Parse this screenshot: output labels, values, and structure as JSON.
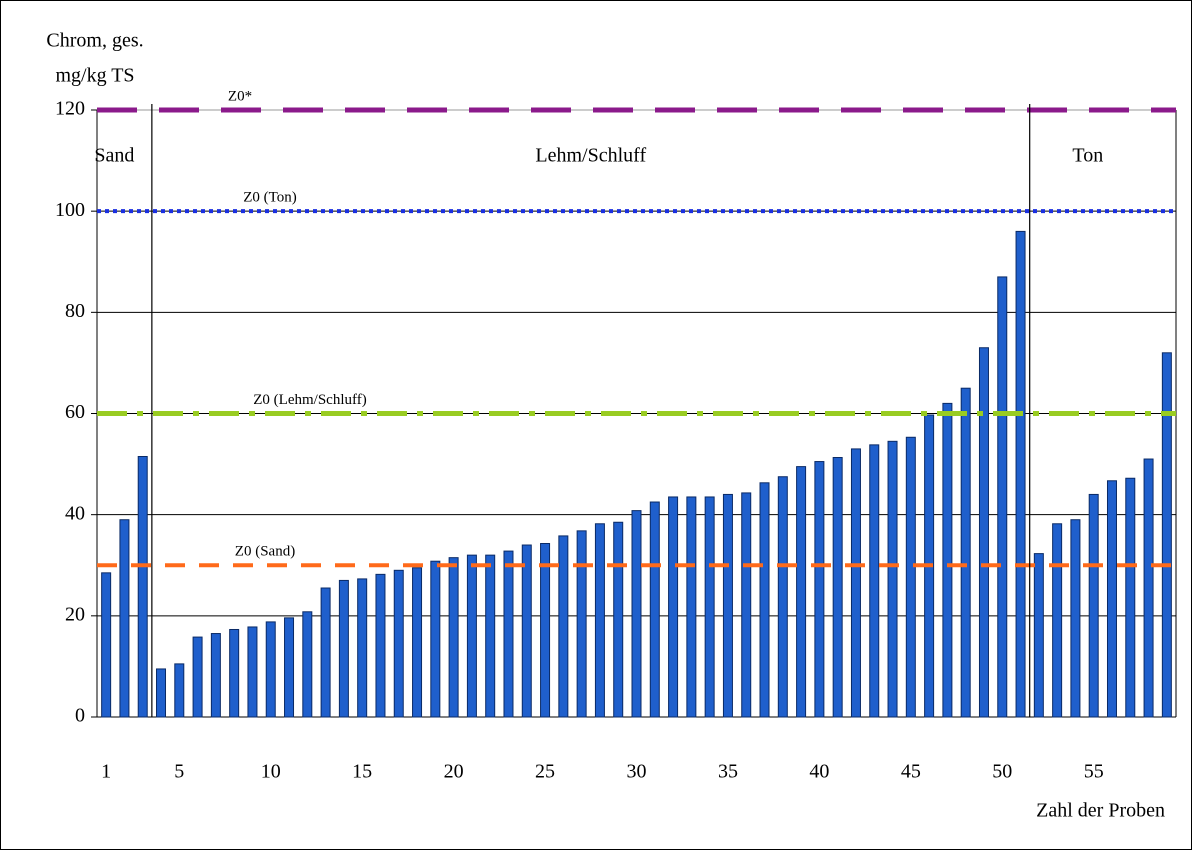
{
  "chart_data": {
    "type": "bar",
    "y_label_lines": [
      "Chrom, ges.",
      "mg/kg TS"
    ],
    "x_label": "Zahl der Proben",
    "categories": [
      "1",
      null,
      null,
      null,
      "5",
      null,
      null,
      null,
      null,
      "10",
      null,
      null,
      null,
      null,
      "15",
      null,
      null,
      null,
      null,
      "20",
      null,
      null,
      null,
      null,
      "25",
      null,
      null,
      null,
      null,
      "30",
      null,
      null,
      null,
      null,
      "35",
      null,
      null,
      null,
      null,
      "40",
      null,
      null,
      null,
      null,
      "45",
      null,
      null,
      null,
      null,
      "50",
      null,
      null,
      null,
      null,
      "55",
      null,
      null,
      null,
      null
    ],
    "values": [
      28.5,
      39,
      51.5,
      9.5,
      10.5,
      15.8,
      16.5,
      17.3,
      17.8,
      18.8,
      19.6,
      20.8,
      25.5,
      27,
      27.3,
      28.2,
      29,
      29.5,
      30.8,
      31.5,
      32,
      32,
      32.8,
      34,
      34.3,
      35.8,
      36.8,
      38.2,
      38.5,
      40.8,
      42.5,
      43.5,
      43.5,
      43.5,
      44,
      44.3,
      46.3,
      47.5,
      49.5,
      50.5,
      51.3,
      53,
      53.8,
      54.5,
      55.3,
      59.7,
      62,
      65,
      73,
      87,
      96,
      32.3,
      38.2,
      39,
      44,
      46.7,
      47.2,
      51,
      72
    ],
    "color": "#1f5fcc",
    "ylim": [
      0,
      120
    ],
    "yticks": [
      0,
      20,
      40,
      60,
      80,
      100,
      120
    ],
    "grid": true,
    "reference_lines": [
      {
        "label": "Z0*",
        "value": 120,
        "color": "#8b1a8b",
        "style": "dashed"
      },
      {
        "label": "Z0 (Ton)",
        "value": 100,
        "color": "#1a2fe0",
        "style": "dotted"
      },
      {
        "label": "Z0 (Lehm/Schluff)",
        "value": 60,
        "color": "#99cc22",
        "style": "dashdot"
      },
      {
        "label": "Z0 (Sand)",
        "value": 30,
        "color": "#ff6a1a",
        "style": "dashed-short"
      }
    ],
    "regions": [
      {
        "label": "Sand",
        "from": 1,
        "to": 3
      },
      {
        "label": "Lehm/Schluff",
        "from": 4,
        "to": 51
      },
      {
        "label": "Ton",
        "from": 52,
        "to": 59
      }
    ]
  }
}
